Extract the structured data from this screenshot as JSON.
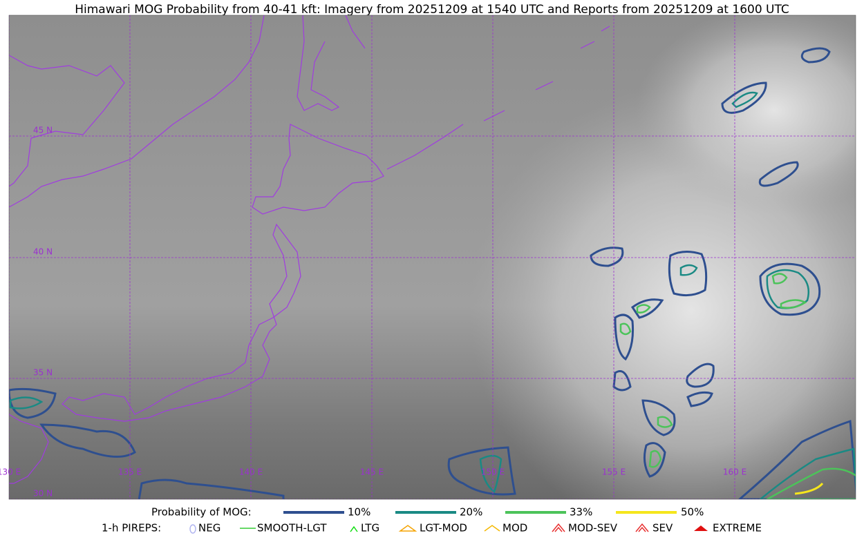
{
  "title": "Himawari MOG Probability from 40-41 kft: Imagery from 20251209 at 1540 UTC and Reports from 20251209 at 1600 UTC",
  "map": {
    "lat_labels": [
      "45 N",
      "40 N",
      "35 N",
      "30 N"
    ],
    "lon_labels": [
      "130 E",
      "135 E",
      "140 E",
      "145 E",
      "150 E",
      "155 E",
      "160 E"
    ]
  },
  "legend": {
    "probability": {
      "label": "Probability of MOG:",
      "items": [
        {
          "label": "10%",
          "color": "#2e4f8f"
        },
        {
          "label": "20%",
          "color": "#1a8a84"
        },
        {
          "label": "33%",
          "color": "#4cc35a"
        },
        {
          "label": "50%",
          "color": "#f5e61d"
        }
      ]
    },
    "pireps": {
      "label": "1-h PIREPS:",
      "items": [
        {
          "label": "NEG",
          "color": "#b0b4f0"
        },
        {
          "label": "SMOOTH-LGT",
          "color": "#33cc33"
        },
        {
          "label": "LTG",
          "color": "#11dd11"
        },
        {
          "label": "LGT-MOD",
          "color": "#f5a300"
        },
        {
          "label": "MOD",
          "color": "#f5b800"
        },
        {
          "label": "MOD-SEV",
          "color": "#e83030"
        },
        {
          "label": "SEV",
          "color": "#e83030"
        },
        {
          "label": "EXTREME",
          "color": "#e01010"
        }
      ]
    }
  }
}
